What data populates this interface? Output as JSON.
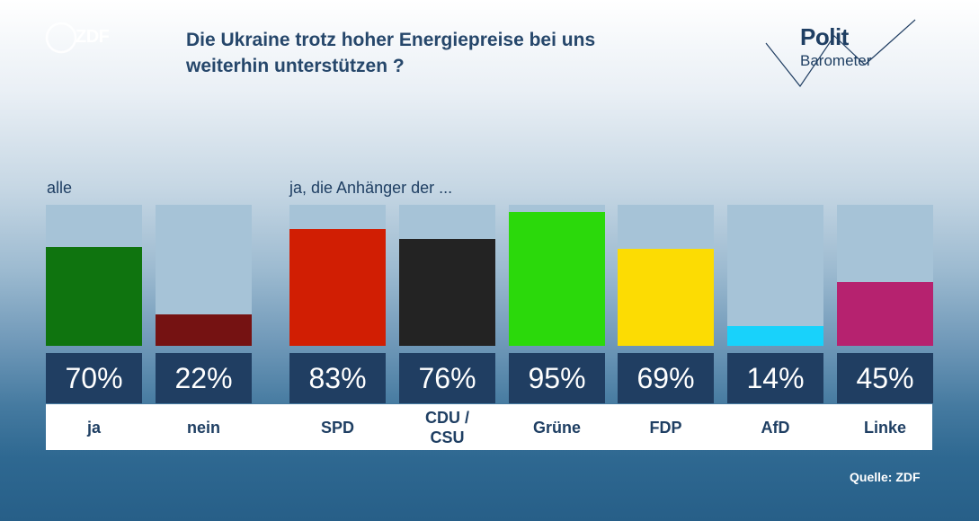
{
  "header": {
    "logo_text": "ZDF",
    "title_line1": "Die Ukraine trotz hoher Energiepreise bei uns",
    "title_line2": "weiterhin unterstützen ?",
    "brand_top": "Polit",
    "brand_bottom": "Barometer"
  },
  "labels": {
    "all": "alle",
    "supporters": "ja, die Anhänger der ..."
  },
  "source": "Quelle: ZDF",
  "chart_data": {
    "type": "bar",
    "title": "Die Ukraine trotz hoher Energiepreise bei uns weiterhin unterstützen ?",
    "ylim": [
      0,
      100
    ],
    "unit": "%",
    "bars": [
      {
        "group": "alle",
        "category": "ja",
        "value": 70,
        "label": "70%",
        "color": "#0f740f"
      },
      {
        "group": "alle",
        "category": "nein",
        "value": 22,
        "label": "22%",
        "color": "#751212"
      },
      {
        "group": "ja, die Anhänger der ...",
        "category": "SPD",
        "value": 83,
        "label": "83%",
        "color": "#d11e03"
      },
      {
        "group": "ja, die Anhänger der ...",
        "category": "CDU / CSU",
        "value": 76,
        "label": "76%",
        "color": "#232323"
      },
      {
        "group": "ja, die Anhänger der ...",
        "category": "Grüne",
        "value": 95,
        "label": "95%",
        "color": "#2bd90b"
      },
      {
        "group": "ja, die Anhänger der ...",
        "category": "FDP",
        "value": 69,
        "label": "69%",
        "color": "#fcdc03"
      },
      {
        "group": "ja, die Anhänger der ...",
        "category": "AfD",
        "value": 14,
        "label": "14%",
        "color": "#18d2fb"
      },
      {
        "group": "ja, die Anhänger der ...",
        "category": "Linke",
        "value": 45,
        "label": "45%",
        "color": "#b6226f"
      }
    ]
  }
}
